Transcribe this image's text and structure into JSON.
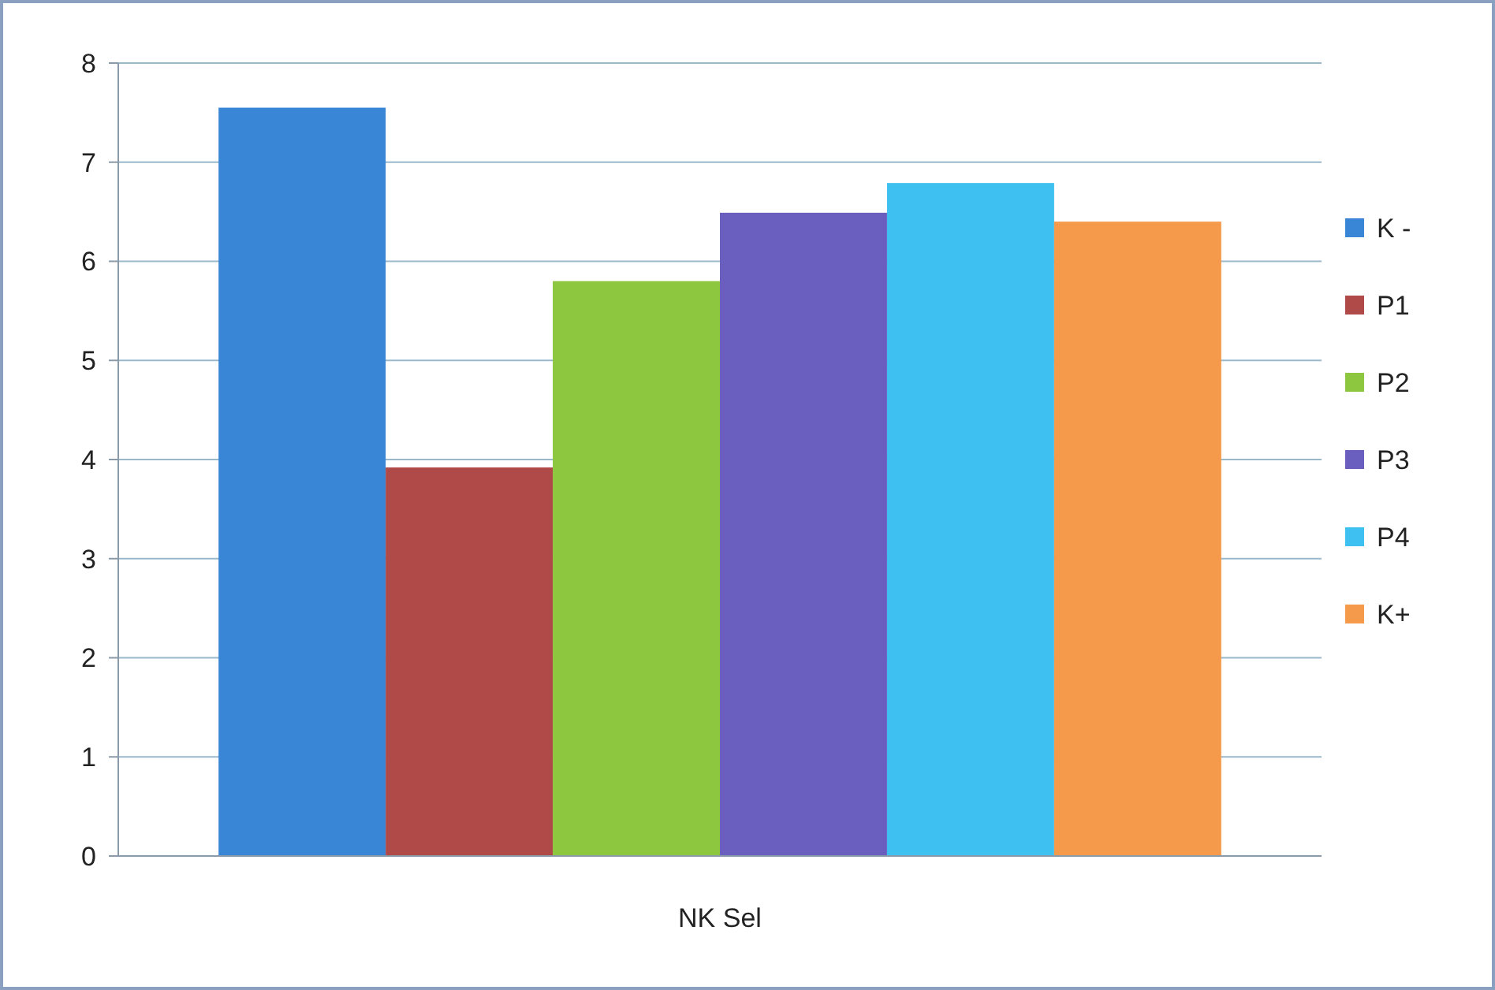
{
  "chart_data": {
    "type": "bar",
    "categories": [
      "NK Sel"
    ],
    "series": [
      {
        "name": "K -",
        "color": "#3a86d6",
        "values": [
          7.55
        ]
      },
      {
        "name": "P1",
        "color": "#b04a48",
        "values": [
          3.92
        ]
      },
      {
        "name": "P2",
        "color": "#8dc63f",
        "values": [
          5.8
        ]
      },
      {
        "name": "P3",
        "color": "#6a5fbf",
        "values": [
          6.49
        ]
      },
      {
        "name": "P4",
        "color": "#3ec0f0",
        "values": [
          6.79
        ]
      },
      {
        "name": "K+",
        "color": "#f49a4a",
        "values": [
          6.4
        ]
      }
    ],
    "ylim": [
      0,
      8
    ],
    "yticks": [
      0,
      1,
      2,
      3,
      4,
      5,
      6,
      7,
      8
    ],
    "grid": "y",
    "legend": "right"
  }
}
